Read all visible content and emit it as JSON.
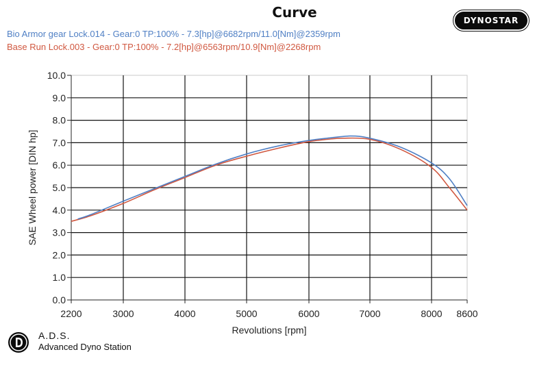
{
  "chart_data": {
    "type": "line",
    "title": "Curve",
    "xlabel": "Revolutions [rpm]",
    "ylabel": "SAE Wheel power [DIN hp]",
    "xlim": [
      2200,
      8600
    ],
    "ylim": [
      0,
      10
    ],
    "x_ticks": [
      2200,
      3000,
      4000,
      5000,
      6000,
      7000,
      8000,
      8600
    ],
    "x_tick_labels": [
      "2200",
      "3000",
      "4000",
      "5000",
      "6000",
      "7000",
      "8000",
      "8600"
    ],
    "y_ticks": [
      0,
      1,
      2,
      3,
      4,
      5,
      6,
      7,
      8,
      9,
      10
    ],
    "y_tick_labels": [
      "0.0",
      "1.0",
      "2.0",
      "3.0",
      "4.0",
      "5.0",
      "6.0",
      "7.0",
      "8.0",
      "9.0",
      "10.0"
    ],
    "grid": true,
    "legend_position": "top-left",
    "series": [
      {
        "name": "Bio Armor gear Lock.014 - Gear:0 TP:100% - 7.3[hp]@6682rpm/11.0[Nm]@2359rpm",
        "color": "#4f7fc4",
        "x": [
          2300,
          2500,
          3000,
          3500,
          4000,
          4500,
          5000,
          5500,
          6000,
          6300,
          6682,
          7000,
          7500,
          8000,
          8300,
          8600
        ],
        "y": [
          3.6,
          3.8,
          4.4,
          4.95,
          5.5,
          6.05,
          6.5,
          6.85,
          7.1,
          7.2,
          7.3,
          7.2,
          6.8,
          6.1,
          5.4,
          4.2
        ]
      },
      {
        "name": "Base Run Lock.003 - Gear:0 TP:100% - 7.2[hp]@6563rpm/10.9[Nm]@2268rpm",
        "color": "#d0573f",
        "x": [
          2200,
          2500,
          3000,
          3500,
          4000,
          4500,
          5000,
          5500,
          6000,
          6300,
          6563,
          7000,
          7500,
          8000,
          8300,
          8600
        ],
        "y": [
          3.5,
          3.75,
          4.3,
          4.9,
          5.45,
          6.0,
          6.4,
          6.75,
          7.05,
          7.15,
          7.2,
          7.15,
          6.7,
          5.9,
          5.0,
          4.0
        ]
      }
    ]
  },
  "branding": {
    "badge": "DYNOSTAR",
    "footer_abbr": "A.D.S.",
    "footer_name": "Advanced Dyno Station"
  }
}
